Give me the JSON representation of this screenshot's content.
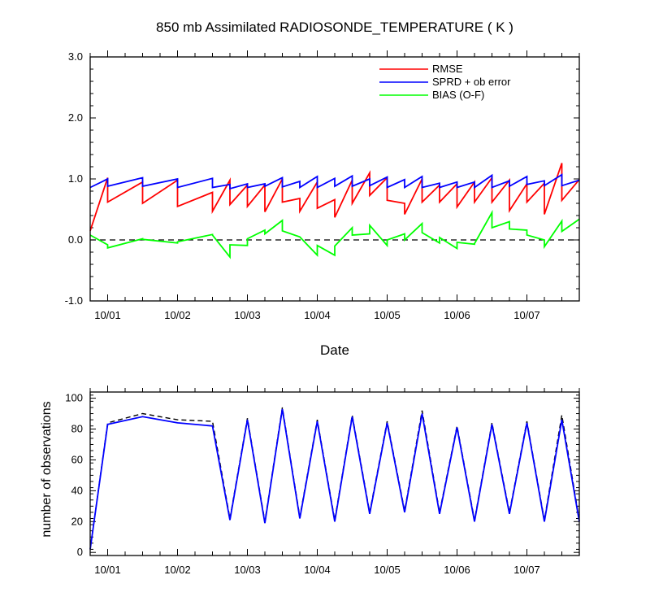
{
  "chart_data": [
    {
      "type": "line",
      "title": "850 mb Assimilated RADIOSONDE_TEMPERATURE ( K )",
      "xlabel": "Date",
      "ylabel": "",
      "x_ticks": [
        1,
        2,
        3,
        4,
        5,
        6,
        7
      ],
      "x_tick_labels": [
        "10/01",
        "10/02",
        "10/03",
        "10/04",
        "10/05",
        "10/06",
        "10/07"
      ],
      "xlim": [
        0.75,
        7.75
      ],
      "ylim": [
        -1.0,
        3.0
      ],
      "y_ticks": [
        -1.0,
        0.0,
        1.0,
        2.0,
        3.0
      ],
      "y_tick_labels": [
        "-1.0",
        "0.0",
        "1.0",
        "2.0",
        "3.0"
      ],
      "y_minor_step": 0.2,
      "x_minor_step": 0.25,
      "legend_position": "top-right",
      "reference_line": {
        "y": 0.0,
        "style": "dashed",
        "color": "#000000"
      },
      "series": [
        {
          "name": "RMSE",
          "color": "#ff0000",
          "x": [
            0.75,
            1.0,
            1.0,
            1.5,
            1.5,
            2.0,
            2.0,
            2.5,
            2.5,
            2.75,
            2.75,
            3.0,
            3.0,
            3.25,
            3.25,
            3.5,
            3.5,
            3.75,
            3.75,
            4.0,
            4.0,
            4.25,
            4.25,
            4.5,
            4.5,
            4.75,
            4.75,
            5.0,
            5.0,
            5.25,
            5.25,
            5.5,
            5.5,
            5.75,
            5.75,
            6.0,
            6.0,
            6.25,
            6.25,
            6.5,
            6.5,
            6.75,
            6.75,
            7.0,
            7.0,
            7.25,
            7.25,
            7.5,
            7.5,
            7.75
          ],
          "y": [
            0.15,
            1.02,
            0.62,
            0.95,
            0.6,
            0.98,
            0.55,
            0.78,
            0.47,
            0.98,
            0.58,
            0.9,
            0.55,
            0.9,
            0.46,
            1.0,
            0.62,
            0.68,
            0.47,
            0.95,
            0.52,
            0.66,
            0.37,
            0.98,
            0.6,
            1.1,
            0.73,
            1.02,
            0.65,
            0.6,
            0.42,
            1.0,
            0.62,
            0.9,
            0.62,
            0.92,
            0.54,
            0.95,
            0.62,
            1.02,
            0.62,
            0.98,
            0.48,
            0.92,
            0.62,
            0.93,
            0.42,
            1.26,
            0.65,
            0.99
          ]
        },
        {
          "name": "SPRD + ob error",
          "color": "#0000ff",
          "x": [
            0.75,
            1.0,
            1.0,
            1.5,
            1.5,
            2.0,
            2.0,
            2.5,
            2.5,
            2.75,
            2.75,
            3.0,
            3.0,
            3.25,
            3.25,
            3.5,
            3.5,
            3.75,
            3.75,
            4.0,
            4.0,
            4.25,
            4.25,
            4.5,
            4.5,
            4.75,
            4.75,
            5.0,
            5.0,
            5.25,
            5.25,
            5.5,
            5.5,
            5.75,
            5.75,
            6.0,
            6.0,
            6.25,
            6.25,
            6.5,
            6.5,
            6.75,
            6.75,
            7.0,
            7.0,
            7.25,
            7.25,
            7.5,
            7.5,
            7.75
          ],
          "y": [
            0.86,
            1.0,
            0.88,
            1.02,
            0.88,
            1.0,
            0.86,
            1.01,
            0.86,
            0.91,
            0.84,
            0.92,
            0.86,
            0.92,
            0.88,
            1.02,
            0.87,
            0.96,
            0.86,
            1.04,
            0.86,
            1.01,
            0.88,
            1.05,
            0.88,
            1.0,
            0.89,
            1.03,
            0.86,
            0.99,
            0.86,
            1.04,
            0.86,
            0.93,
            0.86,
            0.95,
            0.86,
            0.95,
            0.86,
            1.06,
            0.86,
            0.97,
            0.88,
            1.04,
            0.91,
            0.97,
            0.89,
            1.07,
            0.89,
            0.98
          ]
        },
        {
          "name": "BIAS (O-F)",
          "color": "#00ff00",
          "x": [
            0.75,
            1.0,
            1.0,
            1.5,
            1.5,
            2.0,
            2.0,
            2.5,
            2.5,
            2.75,
            2.75,
            3.0,
            3.0,
            3.25,
            3.25,
            3.5,
            3.5,
            3.75,
            3.75,
            4.0,
            4.0,
            4.25,
            4.25,
            4.5,
            4.5,
            4.75,
            4.75,
            5.0,
            5.0,
            5.25,
            5.25,
            5.5,
            5.5,
            5.75,
            5.75,
            6.0,
            6.0,
            6.25,
            6.25,
            6.5,
            6.5,
            6.75,
            6.75,
            7.0,
            7.0,
            7.25,
            7.25,
            7.5,
            7.5,
            7.75
          ],
          "y": [
            0.08,
            -0.08,
            -0.13,
            0.02,
            0.01,
            -0.05,
            -0.03,
            0.09,
            0.08,
            -0.28,
            -0.08,
            -0.09,
            0.02,
            0.16,
            0.1,
            0.32,
            0.15,
            0.05,
            0.05,
            -0.25,
            -0.09,
            -0.25,
            -0.1,
            0.2,
            0.08,
            0.1,
            0.24,
            -0.09,
            0.0,
            0.1,
            0.0,
            0.27,
            0.12,
            -0.05,
            0.04,
            -0.14,
            -0.04,
            -0.07,
            -0.06,
            0.45,
            0.2,
            0.3,
            0.18,
            0.16,
            0.08,
            0.0,
            -0.11,
            0.31,
            0.14,
            0.34
          ]
        }
      ]
    },
    {
      "type": "line",
      "title": "",
      "xlabel": "",
      "ylabel": "number of observations",
      "x_ticks": [
        1,
        2,
        3,
        4,
        5,
        6,
        7
      ],
      "x_tick_labels": [
        "10/01",
        "10/02",
        "10/03",
        "10/04",
        "10/05",
        "10/06",
        "10/07"
      ],
      "xlim": [
        0.75,
        7.75
      ],
      "ylim": [
        -2,
        104
      ],
      "y_ticks": [
        0,
        20,
        40,
        60,
        80,
        100
      ],
      "y_tick_labels": [
        "0",
        "20",
        "40",
        "60",
        "80",
        "100"
      ],
      "y_minor_step": 4,
      "x_minor_step": 0.25,
      "series": [
        {
          "name": "",
          "color": "#000000",
          "style": "dashed",
          "x": [
            0.75,
            1.0,
            1.5,
            2.0,
            2.5,
            2.75,
            3.0,
            3.25,
            3.5,
            3.75,
            4.0,
            4.25,
            4.5,
            4.75,
            5.0,
            5.25,
            5.5,
            5.75,
            6.0,
            6.25,
            6.5,
            6.75,
            7.0,
            7.25,
            7.5,
            7.75
          ],
          "y": [
            2,
            84,
            90,
            86,
            85,
            22,
            87,
            20,
            94,
            23,
            86,
            21,
            89,
            26,
            85,
            27,
            92,
            26,
            82,
            21,
            84,
            26,
            85,
            21,
            89,
            21
          ]
        },
        {
          "name": "",
          "color": "#0000ff",
          "style": "solid",
          "x": [
            0.75,
            1.0,
            1.5,
            2.0,
            2.5,
            2.75,
            3.0,
            3.25,
            3.5,
            3.75,
            4.0,
            4.25,
            4.5,
            4.75,
            5.0,
            5.25,
            5.5,
            5.75,
            6.0,
            6.25,
            6.5,
            6.75,
            7.0,
            7.25,
            7.5,
            7.75
          ],
          "y": [
            2,
            83,
            88,
            84,
            82,
            21,
            86,
            19,
            93,
            22,
            85,
            20,
            88,
            25,
            84,
            26,
            90,
            25,
            81,
            20,
            83,
            25,
            84,
            20,
            86,
            20
          ]
        }
      ]
    }
  ],
  "legend_entries": [
    "RMSE",
    "SPRD + ob error",
    "BIAS (O-F)"
  ]
}
